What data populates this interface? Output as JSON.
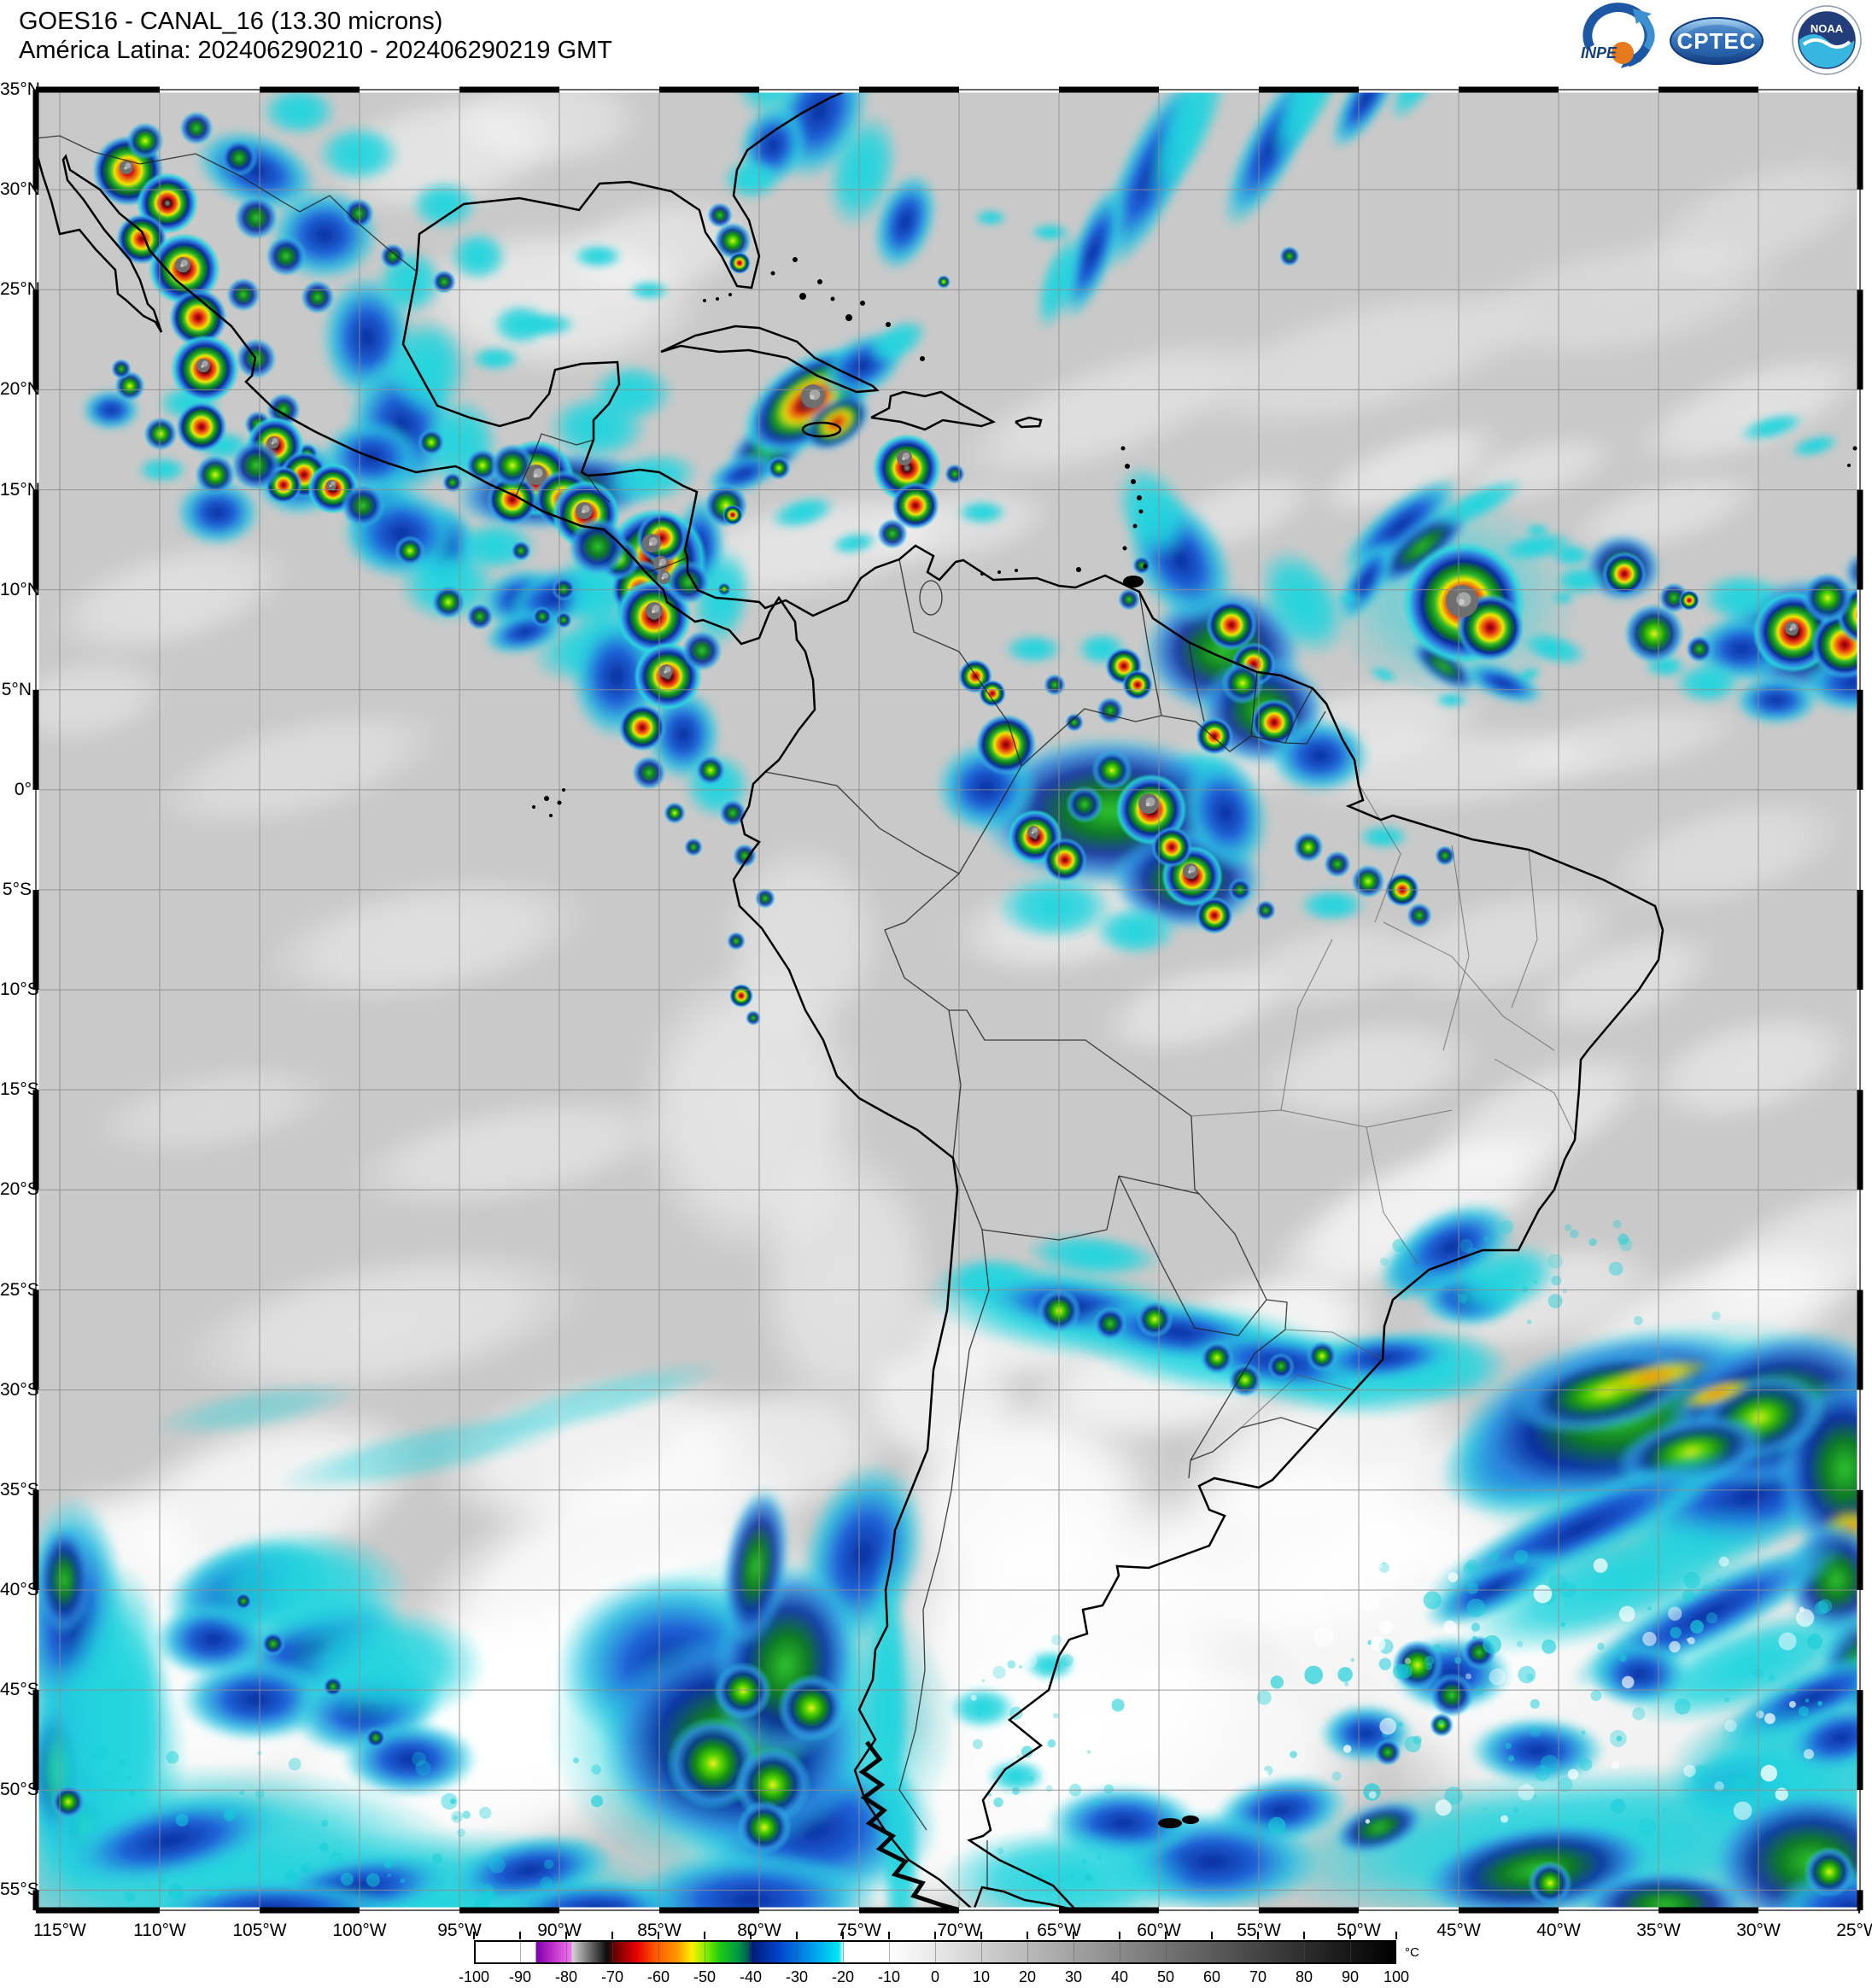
{
  "header": {
    "title": "GOES16 - CANAL_16 (13.30 microns)",
    "subtitle": "América Latina: 202406290210 - 202406290219 GMT"
  },
  "logos": {
    "inpe": "INPE",
    "cptec": "CPTEC",
    "noaa": "NOAA"
  },
  "map": {
    "lat_labels": [
      "35°N",
      "30°N",
      "25°N",
      "20°N",
      "15°N",
      "10°N",
      "5°N",
      "0°",
      "5°S",
      "10°S",
      "15°S",
      "20°S",
      "25°S",
      "30°S",
      "35°S",
      "40°S",
      "45°S",
      "50°S",
      "55°S"
    ],
    "lon_labels": [
      "115°W",
      "110°W",
      "105°W",
      "100°W",
      "95°W",
      "90°W",
      "85°W",
      "80°W",
      "75°W",
      "70°W",
      "65°W",
      "60°W",
      "55°W",
      "50°W",
      "45°W",
      "40°W",
      "35°W",
      "30°W",
      "25°W"
    ]
  },
  "colorbar": {
    "unit": "°C",
    "tick_labels": [
      "-100",
      "-90",
      "-80",
      "-70",
      "-60",
      "-50",
      "-40",
      "-30",
      "-20",
      "-10",
      "0",
      "10",
      "20",
      "30",
      "40",
      "50",
      "60",
      "70",
      "80",
      "90",
      "100"
    ],
    "stops": [
      {
        "t": -100,
        "c": "#ffffff"
      },
      {
        "t": -87,
        "c": "#ffffff"
      },
      {
        "t": -86.8,
        "c": "#7d00ad"
      },
      {
        "t": -83,
        "c": "#c433cc"
      },
      {
        "t": -79.2,
        "c": "#ee77ee"
      },
      {
        "t": -79,
        "c": "#d2d2d2"
      },
      {
        "t": -71.5,
        "c": "#0d0d0d"
      },
      {
        "t": -69.5,
        "c": "#700000"
      },
      {
        "t": -65,
        "c": "#e80000"
      },
      {
        "t": -61,
        "c": "#ff5500"
      },
      {
        "t": -56,
        "c": "#ff9900"
      },
      {
        "t": -53,
        "c": "#ffee00"
      },
      {
        "t": -50,
        "c": "#88ee00"
      },
      {
        "t": -47,
        "c": "#22cc11"
      },
      {
        "t": -43,
        "c": "#009944"
      },
      {
        "t": -40.5,
        "c": "#015555"
      },
      {
        "t": -40,
        "c": "#001a77"
      },
      {
        "t": -34,
        "c": "#0044cc"
      },
      {
        "t": -27,
        "c": "#0099ee"
      },
      {
        "t": -21,
        "c": "#00e6f0"
      },
      {
        "t": -19.8,
        "c": "#ffffff"
      },
      {
        "t": -10,
        "c": "#ffffff"
      },
      {
        "t": 100,
        "c": "#000000"
      }
    ]
  }
}
